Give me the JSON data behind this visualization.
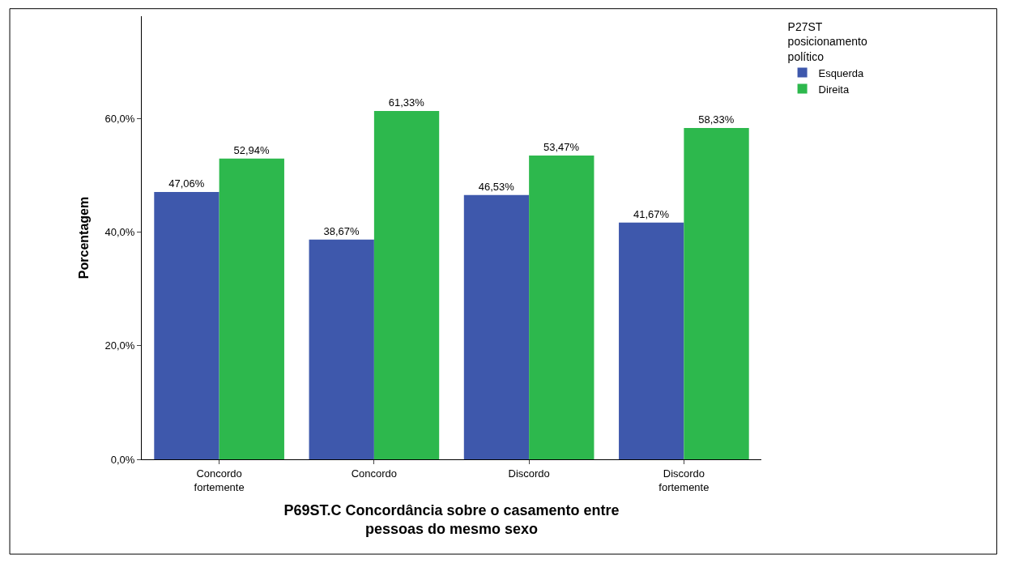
{
  "chart_data": {
    "type": "bar",
    "categories": [
      "Concordo\nfortemente",
      "Concordo",
      "Discordo",
      "Discordo\nfortemente"
    ],
    "series": [
      {
        "name": "Esquerda",
        "color": "#3e58ac",
        "values": [
          47.06,
          38.67,
          46.53,
          41.67
        ],
        "value_labels": [
          "47,06%",
          "38,67%",
          "46,53%",
          "41,67%"
        ]
      },
      {
        "name": "Direita",
        "color": "#2db84d",
        "values": [
          52.94,
          61.33,
          53.47,
          58.33
        ],
        "value_labels": [
          "52,94%",
          "61,33%",
          "53,47%",
          "58,33%"
        ]
      }
    ],
    "xlabel": "P69ST.C Concordância sobre o casamento entre\npessoas do mesmo sexo",
    "ylabel": "Porcentagem",
    "legend_title": "P27ST\nposicionamento\npolítico",
    "legend": "top right",
    "ylim": [
      0,
      78
    ],
    "yticks": [
      {
        "value": 0,
        "label": "0,0%"
      },
      {
        "value": 20,
        "label": "20,0%"
      },
      {
        "value": 40,
        "label": "40,0%"
      },
      {
        "value": 60,
        "label": "60,0%"
      }
    ]
  }
}
